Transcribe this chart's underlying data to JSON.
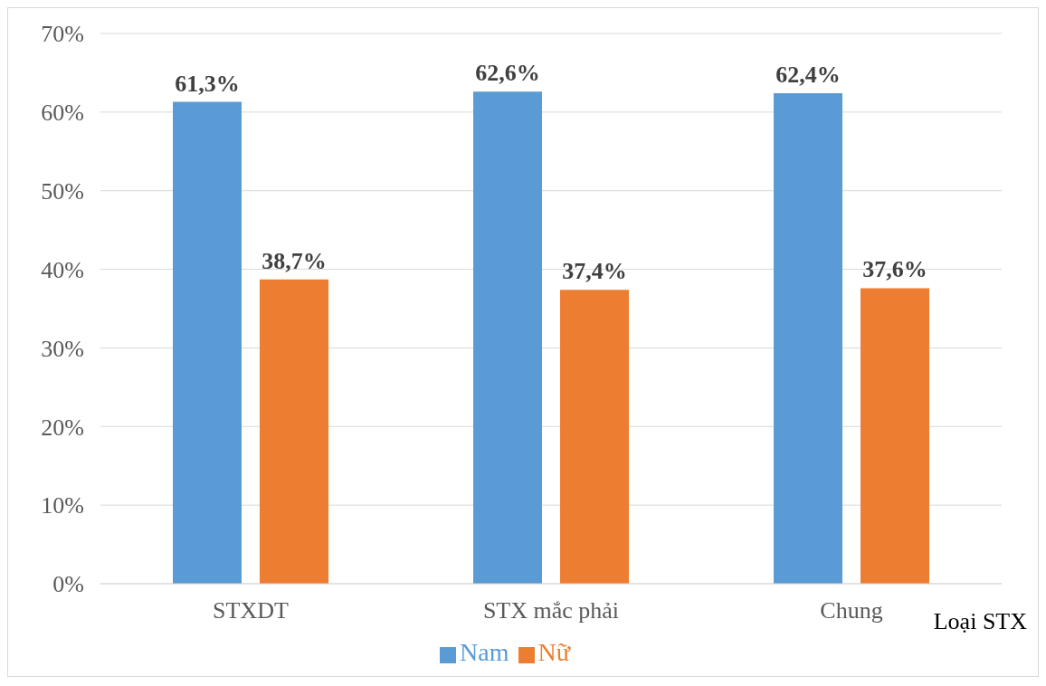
{
  "chart_data": {
    "type": "bar",
    "xlabel": "Loại STX",
    "categories": [
      "STXDT",
      "STX mắc phải",
      "Chung"
    ],
    "series": [
      {
        "name": "Nam",
        "color": "#5b9bd5",
        "values": [
          61.3,
          62.6,
          62.4
        ],
        "value_labels": [
          "61,3%",
          "62,6%",
          "62,4%"
        ]
      },
      {
        "name": "Nữ",
        "color": "#ed7d31",
        "values": [
          38.7,
          37.4,
          37.6
        ],
        "value_labels": [
          "38,7%",
          "37,4%",
          "37,6%"
        ]
      }
    ],
    "ylim": [
      0,
      70
    ],
    "yticks": [
      {
        "value": 0,
        "label": "0%"
      },
      {
        "value": 10,
        "label": "10%"
      },
      {
        "value": 20,
        "label": "20%"
      },
      {
        "value": 30,
        "label": "30%"
      },
      {
        "value": 40,
        "label": "40%"
      },
      {
        "value": 50,
        "label": "50%"
      },
      {
        "value": 60,
        "label": "60%"
      },
      {
        "value": 70,
        "label": "70%"
      }
    ],
    "grid": "y",
    "legend": "bottom"
  }
}
